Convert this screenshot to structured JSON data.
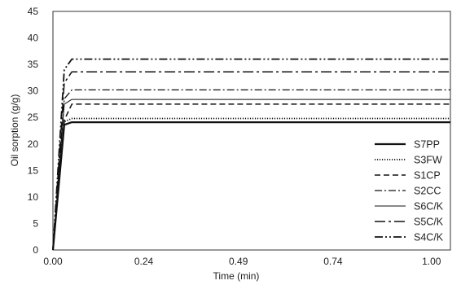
{
  "chart_data": {
    "type": "line",
    "title": "",
    "xlabel": "Time (min)",
    "ylabel": "Oil sorption (g/g)",
    "xlim": [
      0,
      1.05
    ],
    "ylim": [
      0,
      45
    ],
    "xticks": [
      0,
      0.24,
      0.49,
      0.74,
      1.0
    ],
    "xtick_labels": [
      "0.00",
      "0.24",
      "0.49",
      "0.74",
      "1.00"
    ],
    "yticks": [
      0,
      5,
      10,
      15,
      20,
      25,
      30,
      35,
      40,
      45
    ],
    "ytick_labels": [
      "0",
      "5",
      "10",
      "15",
      "20",
      "25",
      "30",
      "35",
      "40",
      "45"
    ],
    "grid": false,
    "legend_position": "bottom-right",
    "series": [
      {
        "name": "S7PP",
        "style": "solid",
        "width": 2.2,
        "x": [
          0,
          0.03,
          0.05,
          1.05
        ],
        "y": [
          0,
          23.6,
          24.1,
          24.1
        ]
      },
      {
        "name": "S3FW",
        "style": "dotted",
        "width": 1.8,
        "x": [
          0,
          0.03,
          0.05,
          1.05
        ],
        "y": [
          0,
          24.2,
          24.8,
          24.8
        ]
      },
      {
        "name": "S1CP",
        "style": "dashed",
        "width": 1.5,
        "x": [
          0,
          0.03,
          0.05,
          1.05
        ],
        "y": [
          0,
          24.5,
          27.5,
          27.5
        ]
      },
      {
        "name": "S2CC",
        "style": "dashdot",
        "width": 1.3,
        "x": [
          0,
          0.03,
          0.05,
          1.05
        ],
        "y": [
          0,
          28.5,
          30.2,
          30.2
        ]
      },
      {
        "name": "S6C/K",
        "style": "solid",
        "width": 1.0,
        "x": [
          0,
          0.03,
          0.05,
          1.05
        ],
        "y": [
          0,
          27.5,
          28.4,
          28.4
        ]
      },
      {
        "name": "S5C/K",
        "style": "longdashdot",
        "width": 1.5,
        "x": [
          0,
          0.03,
          0.05,
          1.05
        ],
        "y": [
          0,
          31.5,
          33.6,
          33.6
        ]
      },
      {
        "name": "S4C/K",
        "style": "dashdotdot",
        "width": 1.8,
        "x": [
          0,
          0.03,
          0.05,
          1.05
        ],
        "y": [
          0,
          34.0,
          36.0,
          36.0
        ]
      }
    ]
  }
}
